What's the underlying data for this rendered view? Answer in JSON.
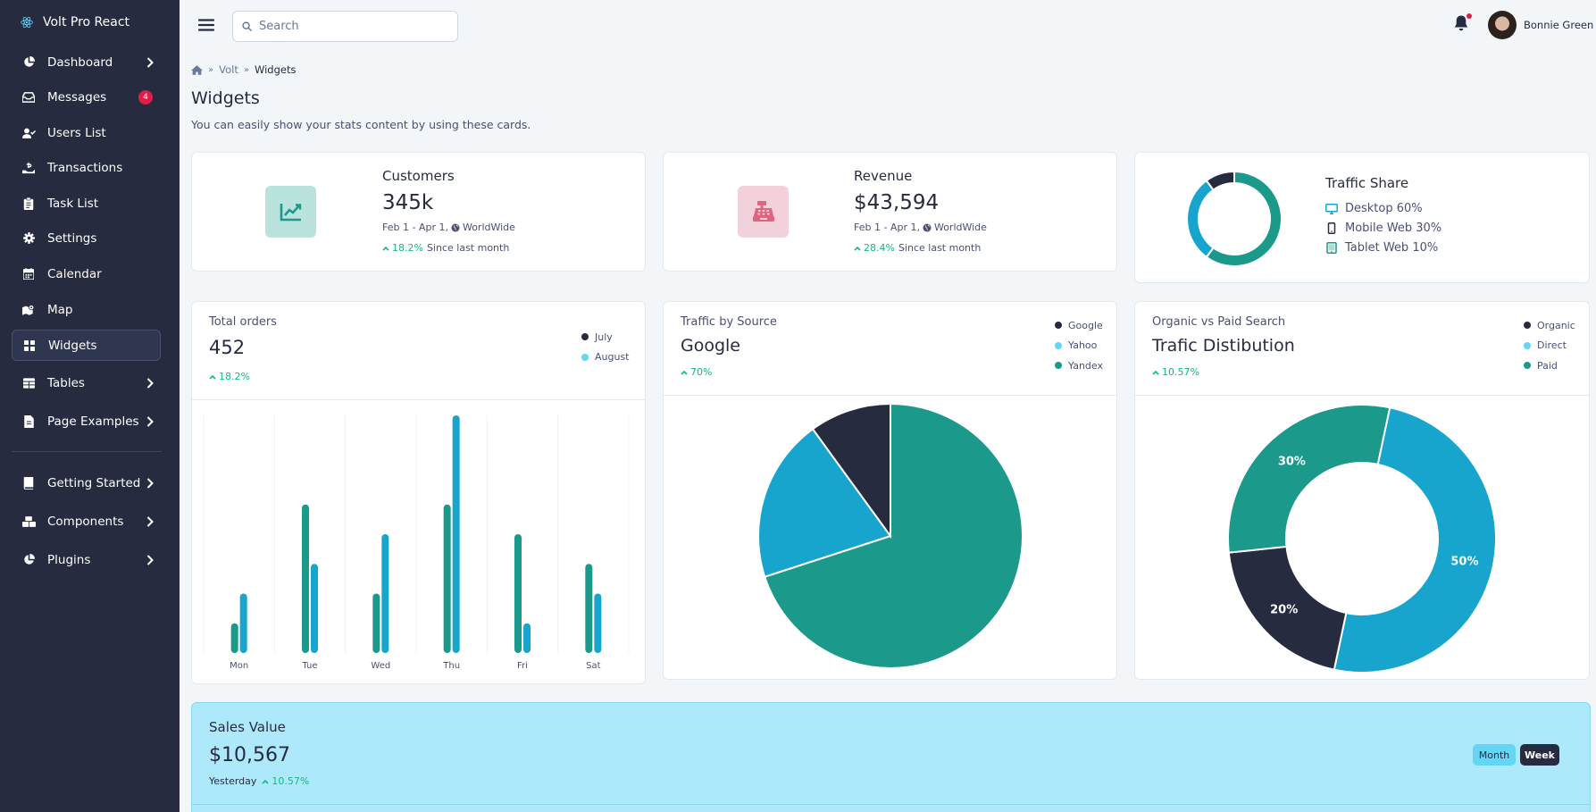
{
  "sidebar": {
    "brand": "Volt Pro React",
    "items": [
      {
        "label": "Dashboard"
      },
      {
        "label": "Messages",
        "badge": "4"
      },
      {
        "label": "Users List"
      },
      {
        "label": "Transactions"
      },
      {
        "label": "Task List"
      },
      {
        "label": "Settings"
      },
      {
        "label": "Calendar"
      },
      {
        "label": "Map"
      },
      {
        "label": "Widgets"
      },
      {
        "label": "Tables"
      },
      {
        "label": "Page Examples"
      },
      {
        "label": "Getting Started"
      },
      {
        "label": "Components"
      },
      {
        "label": "Plugins"
      }
    ],
    "active_item": "Widgets"
  },
  "topbar": {
    "search_placeholder": "Search",
    "user_name": "Bonnie Green"
  },
  "breadcrumb": [
    "Volt",
    "Widgets"
  ],
  "page": {
    "title": "Widgets",
    "subtitle": "You can easily show your stats content by using these cards."
  },
  "customers": {
    "label": "Customers",
    "value": "345k",
    "range": "Feb 1 - Apr 1,",
    "region": "WorldWide",
    "change": "18.2%",
    "change_suffix": "Since last month"
  },
  "revenue": {
    "label": "Revenue",
    "value": "$43,594",
    "range": "Feb 1 - Apr 1,",
    "region": "WorldWide",
    "change": "28.4%",
    "change_suffix": "Since last month"
  },
  "traffic_share": {
    "title": "Traffic Share",
    "rows": [
      {
        "label": "Desktop 60%",
        "icon": "desktop-icon"
      },
      {
        "label": "Mobile Web 30%",
        "icon": "mobile-icon"
      },
      {
        "label": "Tablet Web 10%",
        "icon": "tablet-icon"
      }
    ]
  },
  "total_orders": {
    "label": "Total orders",
    "value": "452",
    "change": "18.2%",
    "legend": [
      "July",
      "August"
    ]
  },
  "traffic_source": {
    "label": "Traffic by Source",
    "value": "Google",
    "change": "70%",
    "legend": [
      "Google",
      "Yahoo",
      "Yandex"
    ]
  },
  "organic": {
    "label": "Organic vs Paid Search",
    "value": "Trafic Distibution",
    "change": "10.57%",
    "legend": [
      "Organic",
      "Direct",
      "Paid"
    ]
  },
  "sales": {
    "label": "Sales Value",
    "value": "$10,567",
    "period": "Yesterday",
    "change": "10.57%",
    "btn_month": "Month",
    "btn_week": "Week"
  },
  "colors": {
    "dark": "#262b40",
    "blue": "#17a5ce",
    "teal": "#1b998b",
    "light_blue": "#63d5f5",
    "green": "#10b981",
    "red": "#e11d48"
  },
  "chart_data": [
    {
      "type": "donut",
      "categories": [
        "Desktop",
        "Mobile Web",
        "Tablet Web"
      ],
      "values": [
        60,
        30,
        10
      ]
    },
    {
      "type": "bar",
      "categories": [
        "Mon",
        "Tue",
        "Wed",
        "Thu",
        "Fri",
        "Sat"
      ],
      "series": [
        {
          "name": "July",
          "values": [
            1,
            5,
            2,
            5,
            4,
            3
          ]
        },
        {
          "name": "August",
          "values": [
            2,
            3,
            4,
            8,
            1,
            2
          ]
        }
      ],
      "ylim": [
        0,
        8
      ]
    },
    {
      "type": "pie",
      "categories": [
        "Google",
        "Yahoo",
        "Yandex"
      ],
      "values": [
        10,
        20,
        70
      ]
    },
    {
      "type": "donut",
      "categories": [
        "Organic",
        "Direct",
        "Paid"
      ],
      "values": [
        20,
        50,
        30
      ],
      "data_labels": [
        "20%",
        "50%",
        "30%"
      ]
    }
  ]
}
